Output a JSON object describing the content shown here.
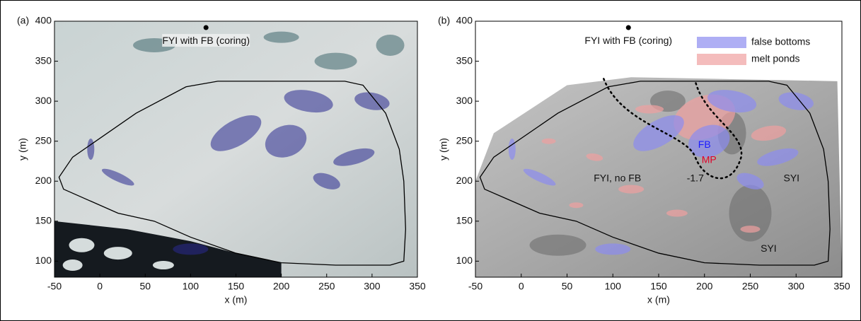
{
  "chart_data": [
    {
      "type": "map",
      "panel_label": "(a)",
      "xlabel": "x (m)",
      "ylabel": "y (m)",
      "xlim": [
        -50,
        350
      ],
      "ylim": [
        80,
        400
      ],
      "xticks": [
        -50,
        0,
        50,
        100,
        150,
        200,
        250,
        300,
        350
      ],
      "yticks": [
        100,
        150,
        200,
        250,
        300,
        350,
        400
      ],
      "points": [
        {
          "x": 117,
          "y": 392,
          "label": "FYI with FB (coring)"
        }
      ]
    },
    {
      "type": "map",
      "panel_label": "(b)",
      "xlabel": "x (m)",
      "ylabel": "y (m)",
      "xlim": [
        -50,
        350
      ],
      "ylim": [
        80,
        400
      ],
      "xticks": [
        -50,
        0,
        50,
        100,
        150,
        200,
        250,
        300,
        350
      ],
      "yticks": [
        100,
        150,
        200,
        250,
        300,
        350,
        400
      ],
      "points": [
        {
          "x": 117,
          "y": 392,
          "label": "FYI with FB (coring)"
        }
      ],
      "legend": [
        {
          "name": "false bottoms",
          "color": "#8c8cf0"
        },
        {
          "name": "melt ponds",
          "color": "#f0a0a0"
        }
      ],
      "annotations": [
        {
          "text": "FB",
          "color": "#1a1aff"
        },
        {
          "text": "MP",
          "color": "#e0002a"
        },
        {
          "text": "FYI, no FB",
          "color": "#111111"
        },
        {
          "text": "-1.7",
          "color": "#111111"
        },
        {
          "text": "SYI",
          "color": "#111111"
        },
        {
          "text": "SYI",
          "color": "#111111"
        }
      ]
    }
  ]
}
